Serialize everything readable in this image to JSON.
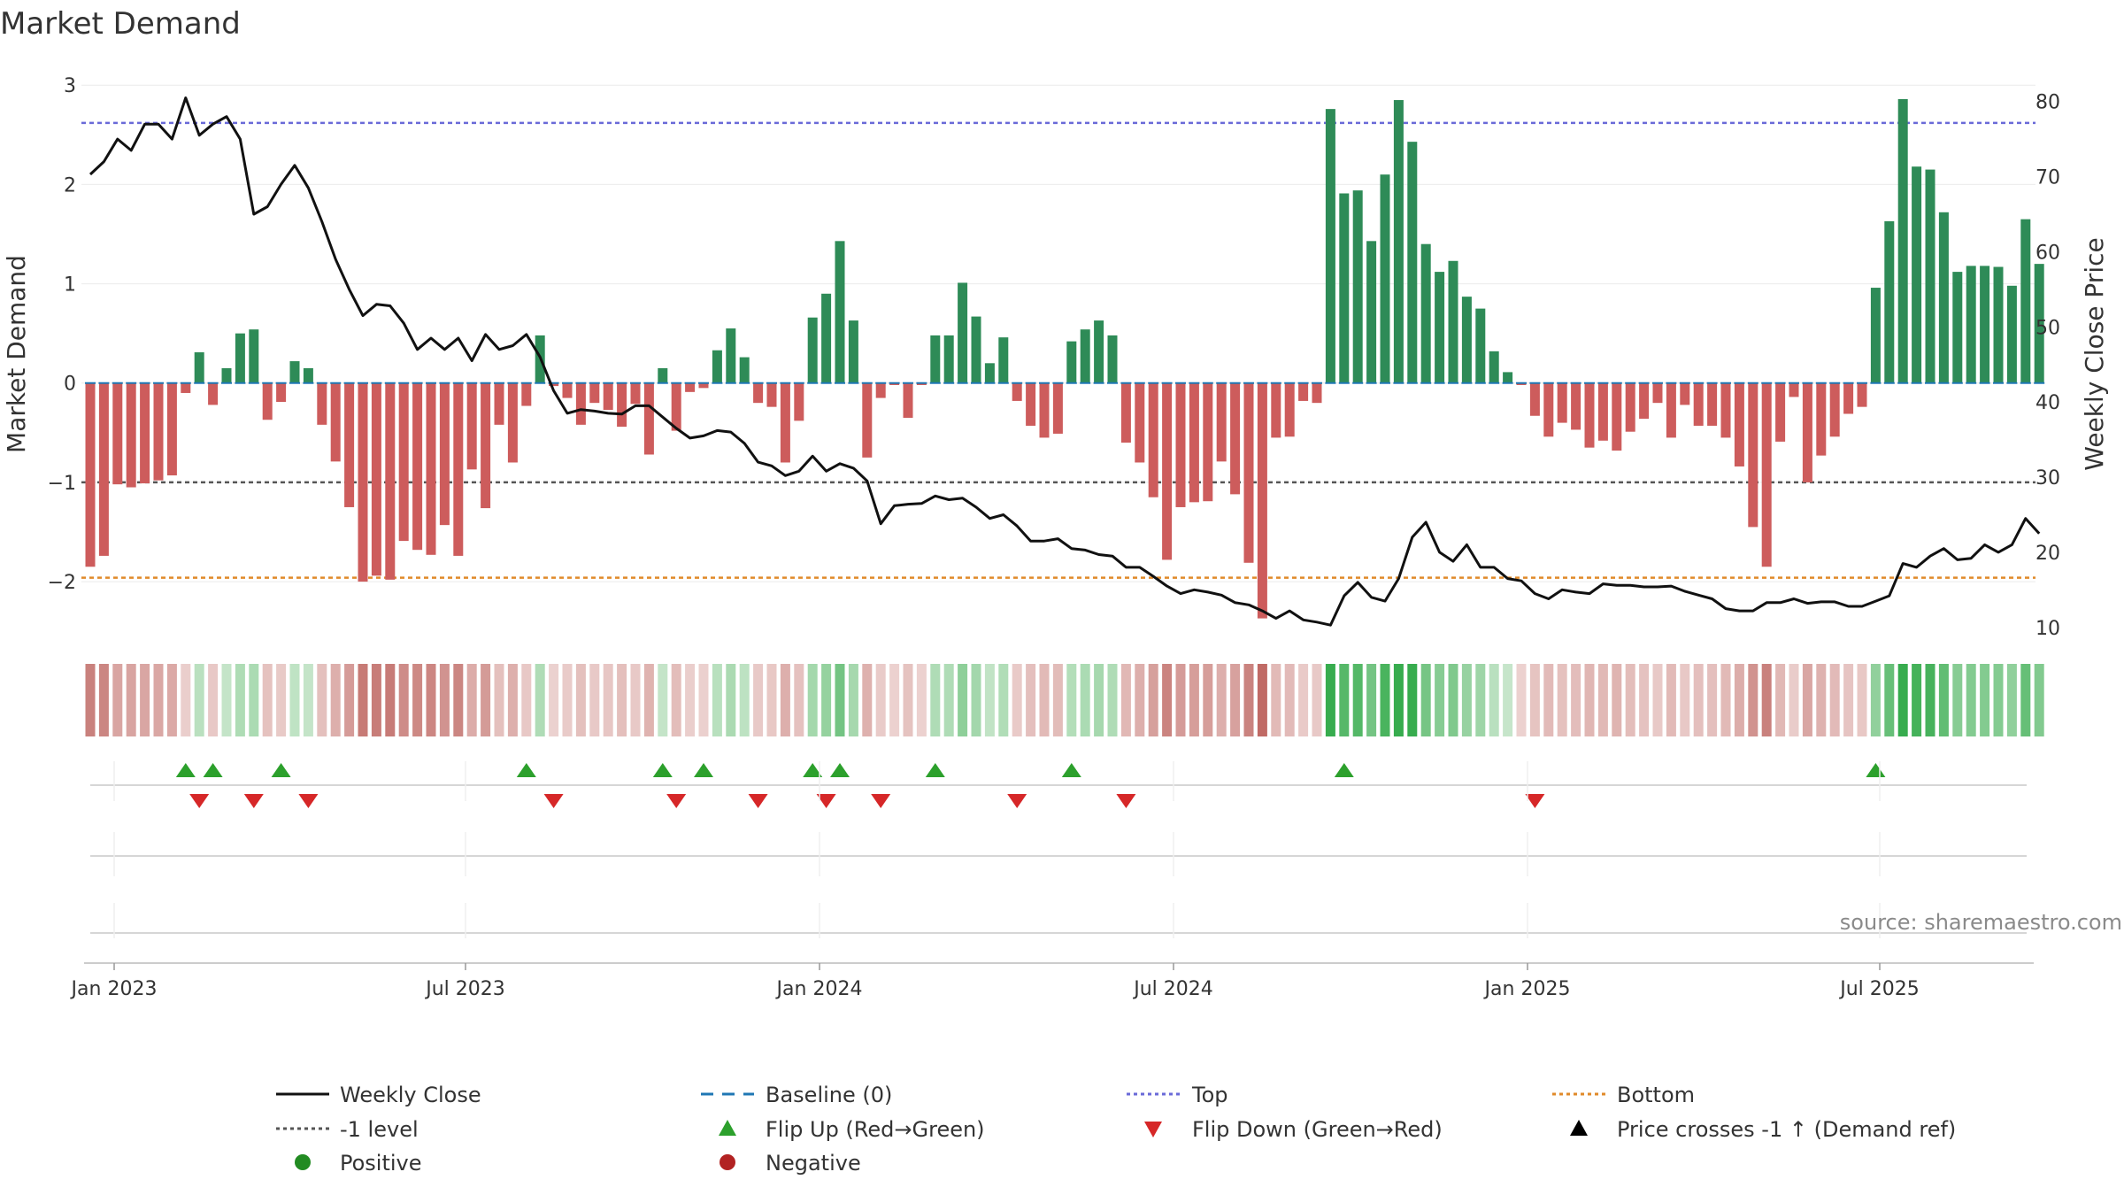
{
  "title": "Market Demand",
  "source": "source: sharemaestro.com",
  "colors": {
    "positive": "#2e8b57",
    "negative": "#cd5c5c",
    "close": "#111111",
    "top": "#6a6ad8",
    "bottom": "#e08a2a",
    "level": "#555555",
    "baseline": "#1f77b4",
    "flip_up": "#2ca02c",
    "flip_down": "#d62728",
    "dot_pos": "#228b22",
    "dot_neg": "#b22222"
  },
  "chart_data": {
    "type": "bar",
    "title": "Market Demand",
    "ylabel": "Market Demand",
    "y2label": "Weekly Close Price",
    "ylim": [
      -2.65,
      3.1
    ],
    "y2lim": [
      7.5,
      83.5
    ],
    "yticks": [
      "3",
      "2",
      "1",
      "0",
      "−1",
      "−2"
    ],
    "y2ticks": [
      "80",
      "70",
      "60",
      "50",
      "40",
      "30",
      "20",
      "10"
    ],
    "xticks": [
      "Jan 2023",
      "Jul 2023",
      "Jan 2024",
      "Jul 2024",
      "Jan 2025",
      "Jul 2025"
    ],
    "top_level": 2.62,
    "bottom_level": -1.96,
    "minus_one_level": -1,
    "demand": [
      -1.85,
      -1.74,
      -1.02,
      -1.05,
      -1.01,
      -0.98,
      -0.93,
      -0.1,
      0.31,
      -0.22,
      0.15,
      0.5,
      0.54,
      -0.37,
      -0.19,
      0.22,
      0.15,
      -0.42,
      -0.79,
      -1.25,
      -2.0,
      -1.94,
      -1.98,
      -1.59,
      -1.68,
      -1.73,
      -1.43,
      -1.74,
      -0.87,
      -1.26,
      -0.42,
      -0.8,
      -0.23,
      0.48,
      -0.03,
      -0.15,
      -0.42,
      -0.2,
      -0.27,
      -0.44,
      -0.21,
      -0.72,
      0.15,
      -0.48,
      -0.09,
      -0.05,
      0.33,
      0.55,
      0.26,
      -0.2,
      -0.24,
      -0.8,
      -0.38,
      0.66,
      0.9,
      1.43,
      0.63,
      -0.75,
      -0.15,
      -0.02,
      -0.35,
      -0.02,
      0.48,
      0.48,
      1.01,
      0.67,
      0.2,
      0.46,
      -0.18,
      -0.43,
      -0.55,
      -0.51,
      0.42,
      0.54,
      0.63,
      0.48,
      -0.6,
      -0.8,
      -1.15,
      -1.78,
      -1.25,
      -1.2,
      -1.19,
      -0.79,
      -1.12,
      -1.81,
      -2.37,
      -0.55,
      -0.54,
      -0.18,
      -0.2,
      2.76,
      1.91,
      1.94,
      1.43,
      2.1,
      2.85,
      2.43,
      1.4,
      1.12,
      1.23,
      0.87,
      0.75,
      0.32,
      0.11,
      -0.02,
      -0.33,
      -0.54,
      -0.4,
      -0.47,
      -0.65,
      -0.58,
      -0.68,
      -0.49,
      -0.36,
      -0.2,
      -0.55,
      -0.22,
      -0.43,
      -0.43,
      -0.55,
      -0.84,
      -1.45,
      -1.85,
      -0.59,
      -0.14,
      -1.0,
      -0.73,
      -0.54,
      -0.31,
      -0.24,
      0.96,
      1.63,
      2.86,
      2.18,
      2.15,
      1.72,
      1.12,
      1.18,
      1.18,
      1.17,
      0.98,
      1.65,
      1.2
    ],
    "close": [
      70.3,
      72.0,
      75.0,
      73.5,
      77.0,
      77.0,
      75.0,
      80.5,
      75.5,
      77.0,
      78.0,
      75.0,
      65.0,
      66.0,
      69.0,
      71.5,
      68.5,
      64.0,
      59.0,
      55.0,
      51.5,
      53.0,
      52.8,
      50.5,
      47.0,
      48.5,
      47.0,
      48.5,
      45.5,
      49.0,
      47.0,
      47.5,
      49.0,
      46.0,
      41.5,
      38.5,
      39.0,
      38.8,
      38.5,
      38.4,
      39.5,
      39.5,
      38.0,
      36.5,
      35.2,
      35.5,
      36.2,
      36.0,
      34.5,
      32.0,
      31.5,
      30.2,
      30.8,
      32.8,
      30.8,
      31.8,
      31.2,
      29.5,
      23.8,
      26.2,
      26.4,
      26.5,
      27.5,
      27.0,
      27.2,
      26.0,
      24.5,
      25.0,
      23.5,
      21.5,
      21.5,
      21.8,
      20.5,
      20.3,
      19.7,
      19.5,
      18.0,
      18.0,
      16.8,
      15.5,
      14.5,
      15.0,
      14.7,
      14.3,
      13.3,
      13.0,
      12.2,
      11.2,
      12.2,
      11.0,
      10.7,
      10.3,
      14.2,
      16.0,
      14.0,
      13.5,
      16.5,
      22.0,
      24.0,
      20.0,
      18.8,
      21.0,
      18.0,
      18.0,
      16.5,
      16.2,
      14.5,
      13.8,
      15.0,
      14.7,
      14.5,
      15.8,
      15.6,
      15.6,
      15.4,
      15.4,
      15.5,
      14.8,
      14.3,
      13.8,
      12.5,
      12.2,
      12.2,
      13.3,
      13.3,
      13.8,
      13.2,
      13.4,
      13.4,
      12.8,
      12.8,
      13.5,
      14.2,
      18.5,
      18.0,
      19.5,
      20.5,
      19.0,
      19.2,
      21.0,
      20.0,
      21.0,
      24.5,
      22.5
    ],
    "flip_up": [
      7,
      9,
      14,
      32,
      42,
      45,
      53,
      55,
      62,
      72,
      92,
      131
    ],
    "flip_down": [
      8,
      12,
      16,
      34,
      43,
      49,
      54,
      58,
      68,
      76,
      106
    ]
  },
  "legend": {
    "weekly_close": "Weekly Close",
    "baseline": "Baseline (0)",
    "top": "Top",
    "bottom": "Bottom",
    "minus_one": "-1 level",
    "flip_up": "Flip Up (Red→Green)",
    "flip_down": "Flip Down (Green→Red)",
    "price_cross": "Price crosses -1 ↑ (Demand ref)",
    "positive": "Positive",
    "negative": "Negative"
  }
}
